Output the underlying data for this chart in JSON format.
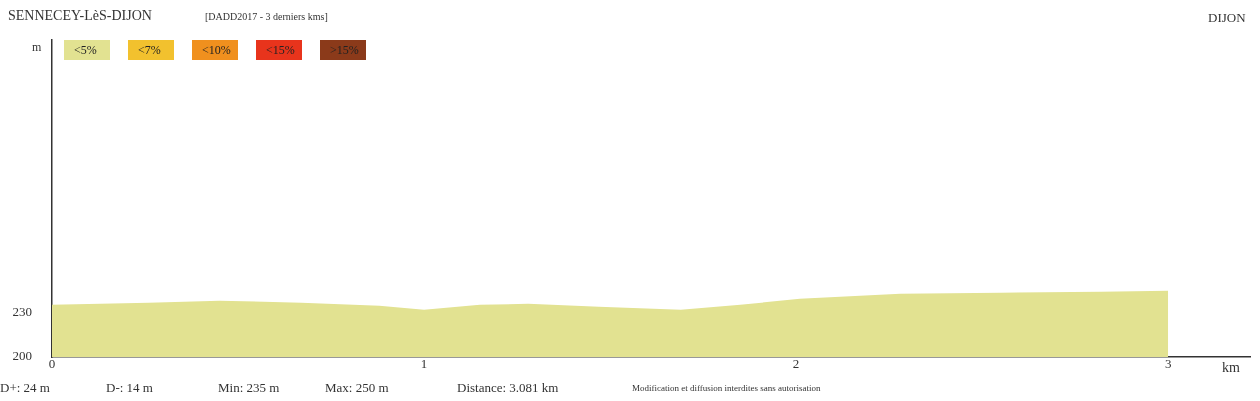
{
  "chart_data": {
    "type": "area",
    "title": "SENNECEY-LèS-DIJON",
    "subtitle": "[DADD2017 - 3 derniers kms]",
    "xlabel": "km",
    "ylabel": "m",
    "x": [
      0,
      0.26,
      0.45,
      0.67,
      0.88,
      1.0,
      1.15,
      1.28,
      1.47,
      1.69,
      1.85,
      2.01,
      2.28,
      2.55,
      2.82,
      3.0
    ],
    "series": [
      {
        "name": "<5%",
        "color": "#e2e291",
        "values": [
          235.4,
          236.8,
          238.2,
          236.8,
          234.8,
          232.0,
          235.4,
          236.1,
          234.1,
          232.0,
          235.4,
          239.5,
          242.9,
          243.6,
          244.3,
          245.0
        ]
      },
      {
        "name": "<7%",
        "color": "#f2c12e",
        "values": [
          null,
          null,
          null,
          null,
          null,
          null,
          null,
          null,
          null,
          null,
          null,
          null,
          null,
          null,
          null,
          null
        ]
      },
      {
        "name": "<10%",
        "color": "#f0901e",
        "values": [
          null,
          null,
          null,
          null,
          null,
          null,
          null,
          null,
          null,
          null,
          null,
          null,
          null,
          null,
          null,
          null
        ]
      },
      {
        "name": "<15%",
        "color": "#e8341c",
        "values": [
          null,
          null,
          null,
          null,
          null,
          null,
          null,
          null,
          null,
          null,
          null,
          null,
          null,
          null,
          null,
          null
        ]
      },
      {
        "name": ">15%",
        "color": "#8b3a1a",
        "values": [
          null,
          null,
          null,
          null,
          null,
          null,
          null,
          null,
          null,
          null,
          null,
          null,
          null,
          null,
          null,
          null
        ]
      }
    ],
    "xlim": [
      0,
      3.22
    ],
    "xticks": [
      0,
      1,
      2,
      3
    ],
    "ylim": [
      200,
      415
    ],
    "yticks": [
      200,
      230
    ],
    "grid": false,
    "legend": "top left",
    "annotations": [
      "DIJON",
      "D+: 24 m",
      "D-: 14 m",
      "Min: 235 m",
      "Max: 250 m",
      "Distance: 3.081 km",
      "Modification et diffusion interdites sans autorisation"
    ]
  }
}
